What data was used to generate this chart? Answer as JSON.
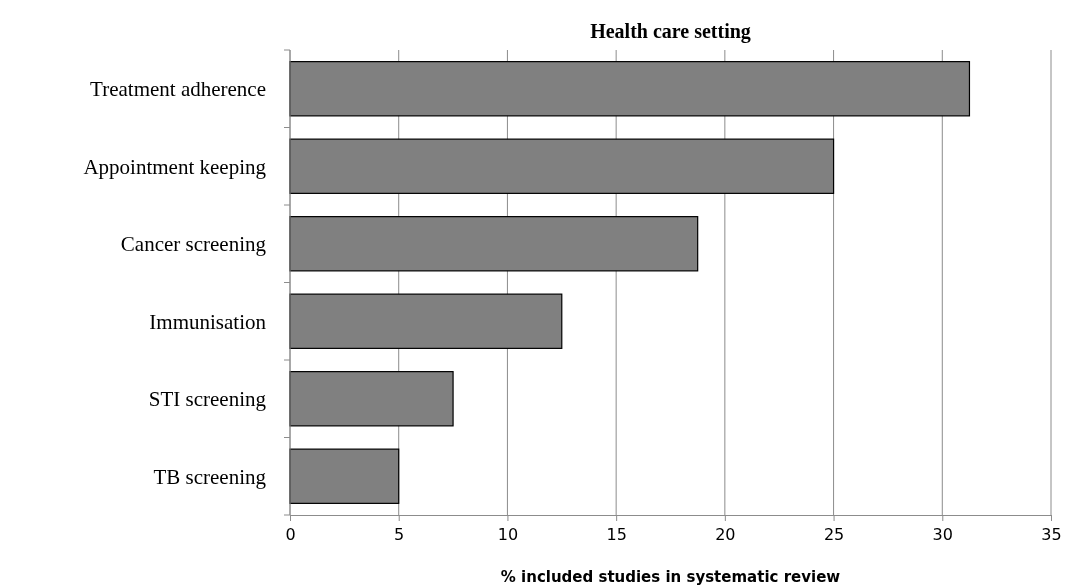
{
  "chart_data": {
    "type": "bar",
    "orientation": "horizontal",
    "title": "Health care setting",
    "xlabel": "% included studies in systematic review",
    "categories": [
      "Treatment adherence",
      "Appointment keeping",
      "Cancer screening",
      "Immunisation",
      "STI screening",
      "TB screening"
    ],
    "values": [
      31.25,
      25,
      18.75,
      12.5,
      7.5,
      5
    ],
    "color": "#808080",
    "xlim": [
      0,
      35
    ],
    "xticks": [
      0,
      5,
      10,
      15,
      20,
      25,
      30,
      35
    ],
    "grid": "x"
  }
}
